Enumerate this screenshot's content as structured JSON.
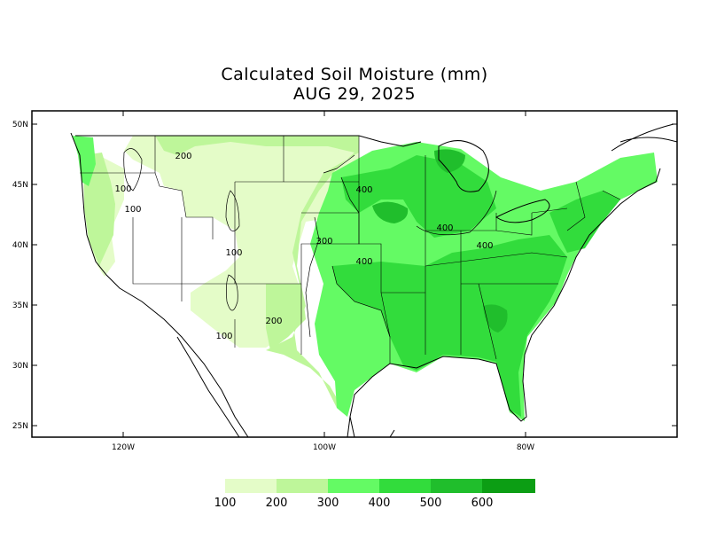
{
  "title": {
    "line1": "Calculated Soil Moisture (mm)",
    "line2": "AUG 29, 2025"
  },
  "axes": {
    "lat_ticks": [
      "50N",
      "45N",
      "40N",
      "35N",
      "30N",
      "25N"
    ],
    "lon_ticks": [
      "120W",
      "100W",
      "80W"
    ]
  },
  "contour_labels": [
    "200",
    "100",
    "100",
    "100",
    "100",
    "200",
    "300",
    "400",
    "400",
    "400",
    "400"
  ],
  "legend": {
    "levels": [
      "100",
      "200",
      "300",
      "400",
      "500",
      "600"
    ],
    "colors": [
      "#e4fcc8",
      "#bef69a",
      "#64fa64",
      "#32dc3c",
      "#20be2c",
      "#0c9e14"
    ]
  }
}
